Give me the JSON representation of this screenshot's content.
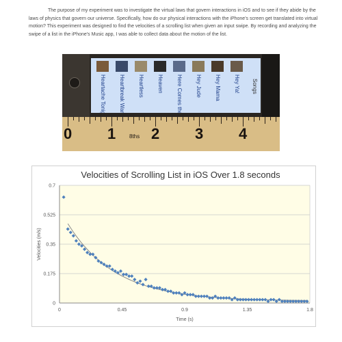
{
  "intro_text": "The purpose of my experiment was to investigate the virtual laws that govern interactions in iOS and to see if they abide by the laws of physics that govern our universe. Specifically, how do our physical interactions with the iPhone's screen get translated into virtual motion? This experiment was designed to find the velocities of a scrolling list when given an input swipe. By recording and analyzing the swipe of a list in the iPhone's Music app, I was able to collect data about the motion of the list.",
  "photo": {
    "ruler_numbers": [
      "0",
      "1",
      "2",
      "3",
      "4"
    ],
    "ruler_note": "8ths",
    "screen_header": "Songs",
    "songs": [
      "Heartache Tonight",
      "Heartbreak Warfare",
      "Heartless",
      "Heaven",
      "Here Comes the Sun",
      "Hey Jude",
      "Hey Mama",
      "Hey Ya!"
    ],
    "colors": {
      "ruler": "#d9bd86",
      "screen": "#cfe0f7",
      "phone": "#2a2622"
    }
  },
  "chart_data": {
    "type": "scatter",
    "title": "Velocities of Scrolling List in iOS Over 1.8 seconds",
    "xlabel": "Time (s)",
    "ylabel": "Velocities (m/s)",
    "xlim": [
      0,
      1.8
    ],
    "ylim": [
      0,
      0.7
    ],
    "x_ticks": [
      "0",
      "0.45",
      "0.9",
      "1.35",
      "1.8"
    ],
    "y_ticks": [
      "0",
      "0.175",
      "0.35",
      "0.525",
      "0.7"
    ],
    "grid": "horizontal",
    "has_trendline": true,
    "series": [
      {
        "marker": "diamond",
        "color": "#4f81bd",
        "x": [
          0.03,
          0.06,
          0.08,
          0.1,
          0.12,
          0.14,
          0.16,
          0.18,
          0.2,
          0.22,
          0.24,
          0.26,
          0.28,
          0.3,
          0.32,
          0.34,
          0.36,
          0.38,
          0.4,
          0.42,
          0.44,
          0.46,
          0.48,
          0.5,
          0.52,
          0.54,
          0.56,
          0.58,
          0.6,
          0.62,
          0.64,
          0.66,
          0.68,
          0.7,
          0.72,
          0.74,
          0.76,
          0.78,
          0.8,
          0.82,
          0.84,
          0.86,
          0.88,
          0.9,
          0.92,
          0.94,
          0.96,
          0.98,
          1.0,
          1.02,
          1.04,
          1.06,
          1.08,
          1.1,
          1.12,
          1.14,
          1.16,
          1.18,
          1.2,
          1.22,
          1.24,
          1.26,
          1.28,
          1.3,
          1.32,
          1.34,
          1.36,
          1.38,
          1.4,
          1.42,
          1.44,
          1.46,
          1.48,
          1.5,
          1.52,
          1.54,
          1.56,
          1.58,
          1.6,
          1.62,
          1.64,
          1.66,
          1.68,
          1.7,
          1.72,
          1.74,
          1.76,
          1.78
        ],
        "values": [
          0.63,
          0.44,
          0.42,
          0.4,
          0.37,
          0.35,
          0.34,
          0.32,
          0.3,
          0.29,
          0.29,
          0.27,
          0.25,
          0.24,
          0.23,
          0.22,
          0.22,
          0.2,
          0.19,
          0.18,
          0.19,
          0.17,
          0.17,
          0.16,
          0.16,
          0.14,
          0.12,
          0.13,
          0.11,
          0.14,
          0.1,
          0.1,
          0.09,
          0.09,
          0.09,
          0.08,
          0.08,
          0.07,
          0.07,
          0.06,
          0.06,
          0.06,
          0.05,
          0.06,
          0.05,
          0.05,
          0.05,
          0.04,
          0.04,
          0.04,
          0.04,
          0.04,
          0.03,
          0.03,
          0.04,
          0.03,
          0.03,
          0.03,
          0.03,
          0.03,
          0.02,
          0.03,
          0.02,
          0.02,
          0.02,
          0.02,
          0.02,
          0.02,
          0.02,
          0.02,
          0.02,
          0.02,
          0.02,
          0.01,
          0.02,
          0.02,
          0.01,
          0.02,
          0.01,
          0.01,
          0.01,
          0.01,
          0.01,
          0.01,
          0.01,
          0.01,
          0.01,
          0.01
        ]
      }
    ]
  }
}
